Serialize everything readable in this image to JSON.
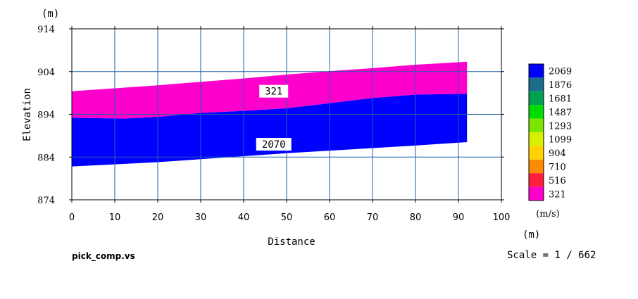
{
  "file_name": "pick_comp.vs",
  "scale_text": "Scale = 1 / 662",
  "chart_data": {
    "type": "area",
    "title": "",
    "xlabel": "Distance",
    "ylabel": "Elevation",
    "x_unit": "(m)",
    "y_unit": "(m)",
    "xlim": [
      0,
      100
    ],
    "ylim": [
      874,
      914
    ],
    "x_ticks": [
      "0",
      "10",
      "20",
      "30",
      "40",
      "50",
      "60",
      "70",
      "80",
      "90",
      "100"
    ],
    "y_ticks": [
      "874",
      "884",
      "894",
      "904",
      "914"
    ],
    "grid": true,
    "colors": {
      "grid": "#1f5fa8",
      "axis": "#000000"
    },
    "layers": [
      {
        "name": "321",
        "color": "#ff00cc",
        "top": [
          [
            0,
            899.4
          ],
          [
            10,
            900.1
          ],
          [
            20,
            900.8
          ],
          [
            30,
            901.6
          ],
          [
            40,
            902.4
          ],
          [
            50,
            903.3
          ],
          [
            60,
            904.1
          ],
          [
            70,
            904.8
          ],
          [
            80,
            905.6
          ],
          [
            92,
            906.3
          ]
        ],
        "bottom": [
          [
            0,
            893.2
          ],
          [
            12,
            893.0
          ],
          [
            20,
            893.4
          ],
          [
            30,
            894.3
          ],
          [
            40,
            894.8
          ],
          [
            50,
            895.4
          ],
          [
            60,
            896.6
          ],
          [
            70,
            897.8
          ],
          [
            80,
            898.6
          ],
          [
            92,
            898.8
          ]
        ],
        "label_x": 47,
        "label_y": 899.4
      },
      {
        "name": "2070",
        "color": "#0000ff",
        "top": [
          [
            0,
            893.2
          ],
          [
            12,
            893.0
          ],
          [
            20,
            893.4
          ],
          [
            30,
            894.3
          ],
          [
            40,
            894.8
          ],
          [
            50,
            895.4
          ],
          [
            60,
            896.6
          ],
          [
            70,
            897.8
          ],
          [
            80,
            898.6
          ],
          [
            92,
            898.8
          ]
        ],
        "bottom": [
          [
            0,
            881.8
          ],
          [
            10,
            882.3
          ],
          [
            20,
            882.8
          ],
          [
            30,
            883.5
          ],
          [
            40,
            884.2
          ],
          [
            50,
            884.9
          ],
          [
            60,
            885.5
          ],
          [
            70,
            886.1
          ],
          [
            80,
            886.7
          ],
          [
            92,
            887.5
          ]
        ],
        "label_x": 47,
        "label_y": 887.0
      }
    ],
    "legend": {
      "position": "right",
      "unit": "(m/s)",
      "entries": [
        {
          "label": "2069",
          "color": "#0000ff"
        },
        {
          "label": "1876",
          "color": "#1a6e8c"
        },
        {
          "label": "1681",
          "color": "#00a050"
        },
        {
          "label": "1487",
          "color": "#00dc00"
        },
        {
          "label": "1293",
          "color": "#7ce600"
        },
        {
          "label": "1099",
          "color": "#d6f000"
        },
        {
          "label": "904",
          "color": "#ffd200"
        },
        {
          "label": "710",
          "color": "#ff8c00"
        },
        {
          "label": "516",
          "color": "#ff1e3c"
        },
        {
          "label": "321",
          "color": "#ff00cc"
        }
      ]
    }
  }
}
